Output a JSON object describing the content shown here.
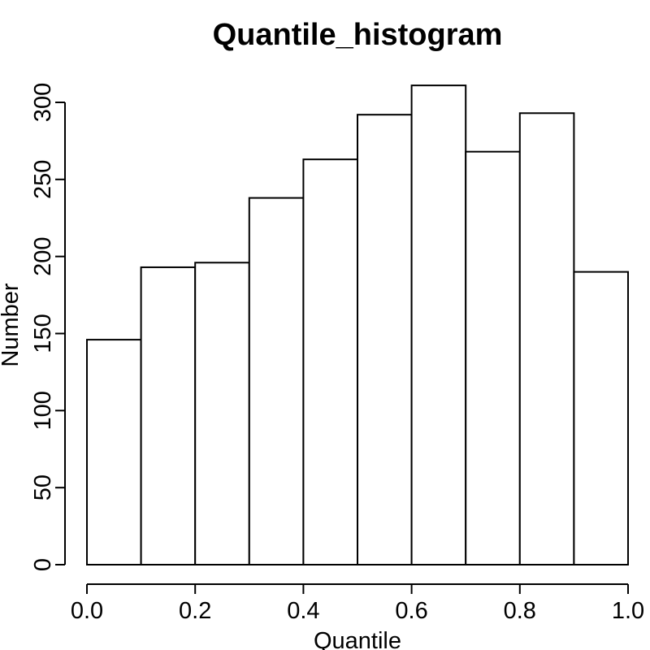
{
  "chart_data": {
    "type": "bar",
    "title": "Quantile_histogram",
    "xlabel": "Quantile",
    "ylabel": "Number",
    "bins": [
      [
        0.0,
        0.1
      ],
      [
        0.1,
        0.2
      ],
      [
        0.2,
        0.3
      ],
      [
        0.3,
        0.4
      ],
      [
        0.4,
        0.5
      ],
      [
        0.5,
        0.6
      ],
      [
        0.6,
        0.7
      ],
      [
        0.7,
        0.8
      ],
      [
        0.8,
        0.9
      ],
      [
        0.9,
        1.0
      ]
    ],
    "values": [
      146,
      193,
      196,
      238,
      263,
      292,
      311,
      268,
      293,
      190
    ],
    "xlim": [
      0.0,
      1.0
    ],
    "ylim": [
      0,
      300
    ],
    "x_ticks": [
      0.0,
      0.2,
      0.4,
      0.6,
      0.8,
      1.0
    ],
    "x_tick_labels": [
      "0.0",
      "0.2",
      "0.4",
      "0.6",
      "0.8",
      "1.0"
    ],
    "y_ticks": [
      0,
      50,
      100,
      150,
      200,
      250,
      300
    ],
    "y_tick_labels": [
      "0",
      "50",
      "100",
      "150",
      "200",
      "250",
      "300"
    ],
    "grid": false,
    "legend": "none",
    "bar_fill": "#ffffff",
    "bar_stroke": "#000000"
  }
}
